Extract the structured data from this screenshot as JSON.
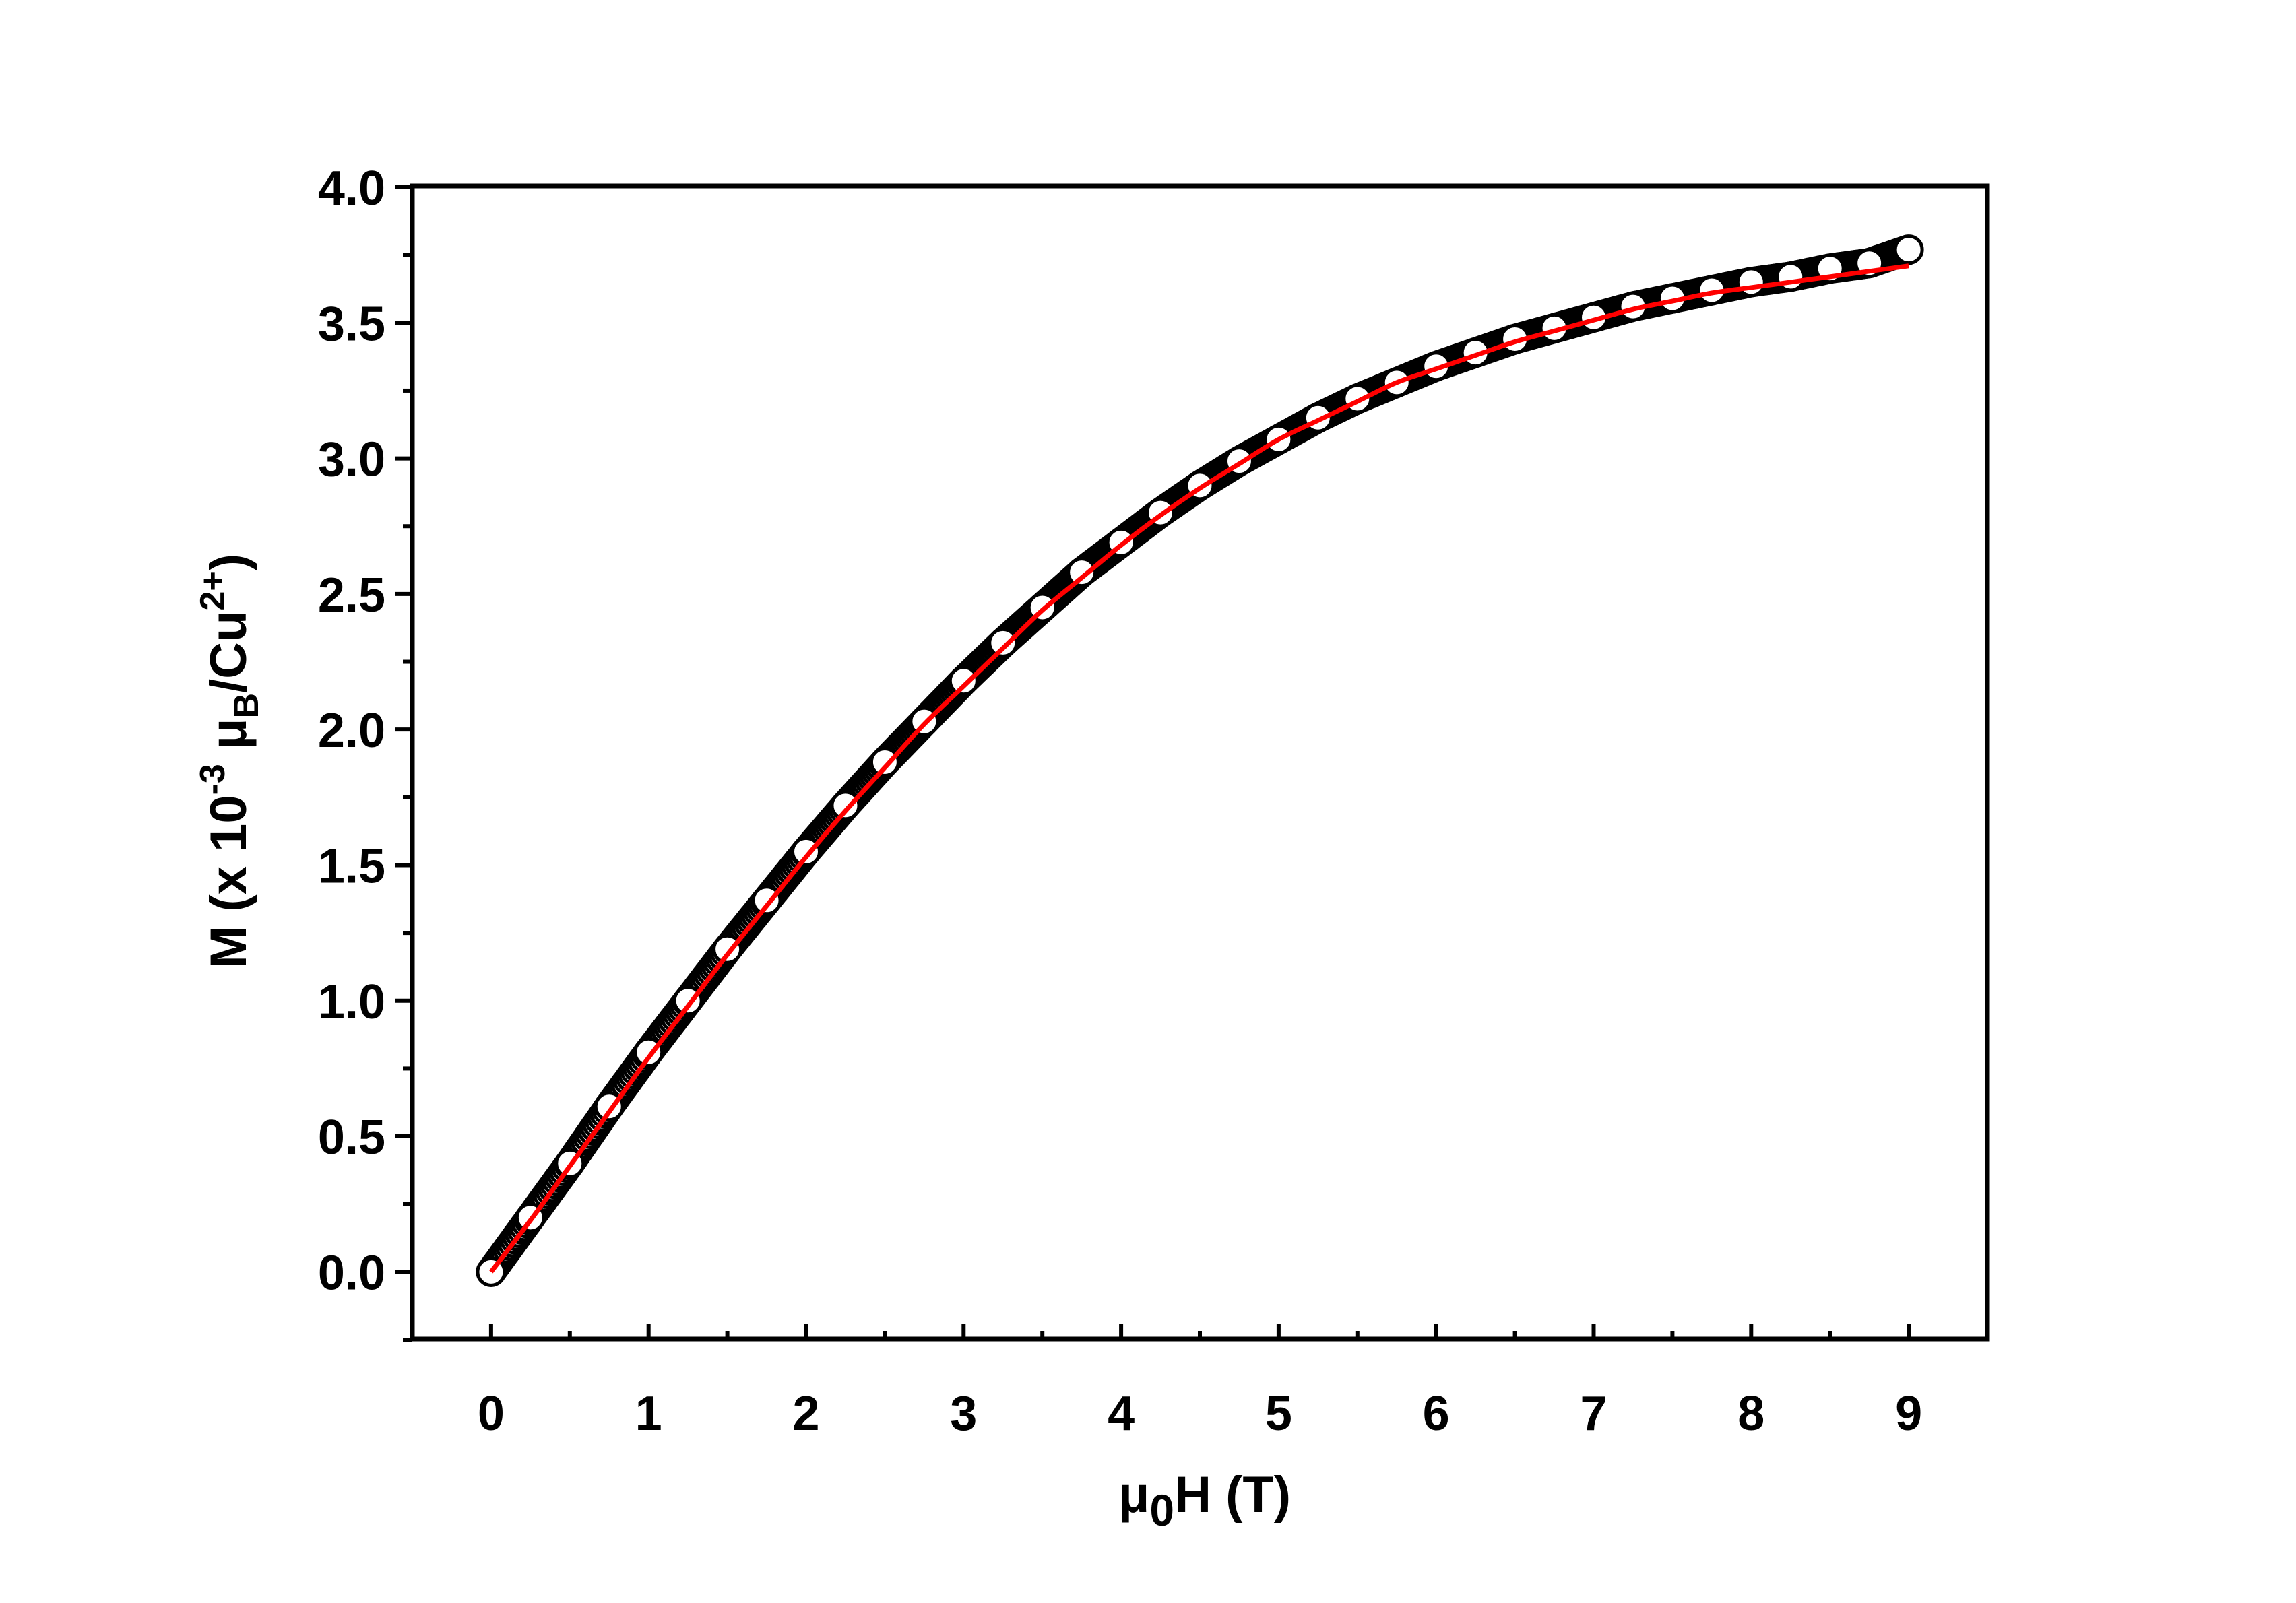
{
  "chart_data": {
    "type": "scatter",
    "title": "",
    "xlabel": {
      "prefix": "μ",
      "sub": "0",
      "suffix": "H (T)"
    },
    "ylabel": {
      "part1": "M (x 10",
      "sup1": "-3",
      "part2": " μ",
      "sub2": "B",
      "part3": "/Cu",
      "sup3": "2+",
      "part4": ")"
    },
    "xlim": [
      -0.5,
      9.5
    ],
    "ylim": [
      -0.25,
      4.0
    ],
    "x_ticks": [
      0,
      1,
      2,
      3,
      4,
      5,
      6,
      7,
      8,
      9
    ],
    "x_tick_labels": [
      "0",
      "1",
      "2",
      "3",
      "4",
      "5",
      "6",
      "7",
      "8",
      "9"
    ],
    "y_ticks": [
      0.0,
      0.5,
      1.0,
      1.5,
      2.0,
      2.5,
      3.0,
      3.5,
      4.0
    ],
    "y_tick_labels": [
      "0.0",
      "0.5",
      "1.0",
      "1.5",
      "2.0",
      "2.5",
      "3.0",
      "3.5",
      "4.0"
    ],
    "grid": false,
    "legend": "none",
    "series": [
      {
        "kind": "data",
        "marker": "open-circle",
        "color": "#000000",
        "x": [
          0,
          0.25,
          0.5,
          0.75,
          1,
          1.25,
          1.5,
          1.75,
          2,
          2.25,
          2.5,
          2.75,
          3,
          3.25,
          3.5,
          3.75,
          4,
          4.25,
          4.5,
          4.75,
          5,
          5.25,
          5.5,
          5.75,
          6,
          6.25,
          6.5,
          6.75,
          7,
          7.25,
          7.5,
          7.75,
          8,
          8.25,
          8.5,
          8.75,
          9
        ],
        "y": [
          0.0,
          0.2,
          0.4,
          0.61,
          0.81,
          1.0,
          1.19,
          1.37,
          1.55,
          1.72,
          1.88,
          2.03,
          2.18,
          2.32,
          2.45,
          2.58,
          2.69,
          2.8,
          2.9,
          2.99,
          3.07,
          3.15,
          3.22,
          3.28,
          3.34,
          3.39,
          3.44,
          3.48,
          3.52,
          3.56,
          3.59,
          3.62,
          3.65,
          3.67,
          3.7,
          3.72,
          3.77
        ]
      },
      {
        "kind": "fit",
        "marker": "line",
        "color": "#ff0000",
        "x": [
          0,
          0.25,
          0.5,
          0.75,
          1,
          1.25,
          1.5,
          1.75,
          2,
          2.25,
          2.5,
          2.75,
          3,
          3.25,
          3.5,
          3.75,
          4,
          4.25,
          4.5,
          4.75,
          5,
          5.25,
          5.5,
          5.75,
          6,
          6.25,
          6.5,
          6.75,
          7,
          7.25,
          7.5,
          7.75,
          8,
          8.25,
          8.5,
          8.75,
          9
        ],
        "y": [
          0.0,
          0.19,
          0.39,
          0.59,
          0.79,
          0.98,
          1.17,
          1.35,
          1.53,
          1.7,
          1.86,
          2.02,
          2.16,
          2.3,
          2.44,
          2.56,
          2.68,
          2.79,
          2.89,
          2.98,
          3.07,
          3.14,
          3.21,
          3.28,
          3.33,
          3.38,
          3.43,
          3.47,
          3.51,
          3.55,
          3.58,
          3.61,
          3.63,
          3.65,
          3.67,
          3.69,
          3.71
        ]
      }
    ]
  }
}
